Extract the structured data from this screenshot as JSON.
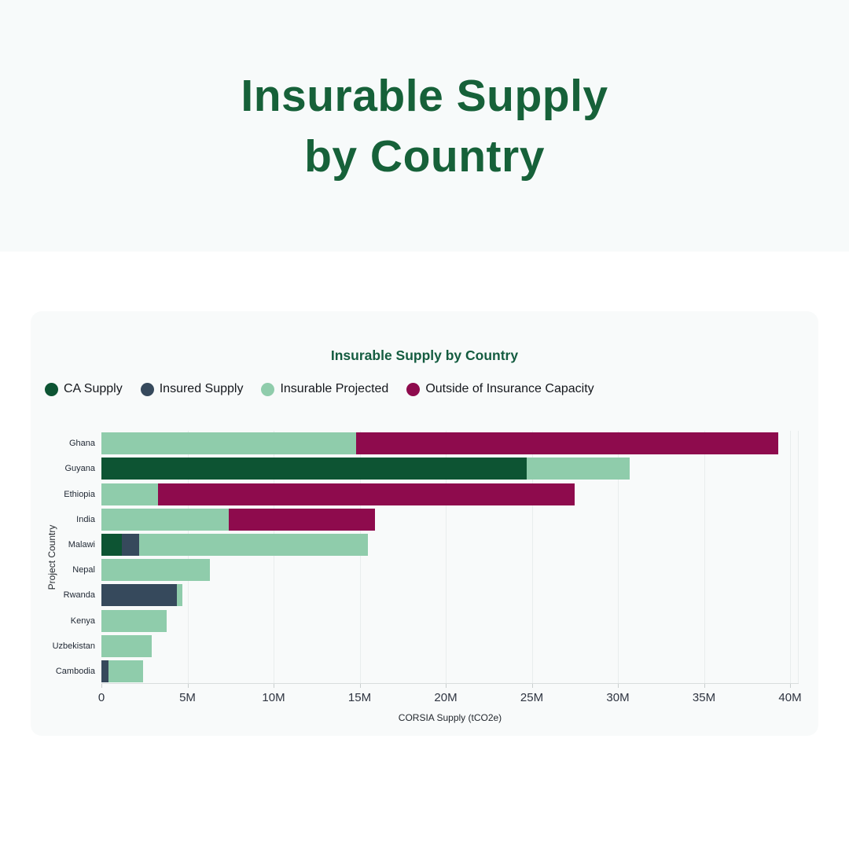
{
  "hero": {
    "title_line1": "Insurable Supply",
    "title_line2": "by Country"
  },
  "colors": {
    "hero_bg": "#f7fafa",
    "card_bg": "#f8fafa",
    "title_green": "#166139",
    "chart_title_green": "#145c40",
    "grid": "#e9eded",
    "axis_line": "#d9dddd"
  },
  "chart_data": {
    "type": "bar",
    "orientation": "horizontal",
    "stacked": true,
    "title": "Insurable Supply by Country",
    "xlabel": "CORSIA Supply (tCO2e)",
    "ylabel": "Project Country",
    "unit": "millions of tCO2e",
    "xlim": [
      0,
      40.5
    ],
    "grid": "vertical",
    "legend_position": "top-left",
    "x_ticks": [
      {
        "value": 0,
        "label": "0"
      },
      {
        "value": 5,
        "label": "5M"
      },
      {
        "value": 10,
        "label": "10M"
      },
      {
        "value": 15,
        "label": "15M"
      },
      {
        "value": 20,
        "label": "20M"
      },
      {
        "value": 25,
        "label": "25M"
      },
      {
        "value": 30,
        "label": "30M"
      },
      {
        "value": 35,
        "label": "35M"
      },
      {
        "value": 40,
        "label": "40M"
      }
    ],
    "categories": [
      "Ghana",
      "Guyana",
      "Ethiopia",
      "India",
      "Malawi",
      "Nepal",
      "Rwanda",
      "Kenya",
      "Uzbekistan",
      "Cambodia"
    ],
    "series": [
      {
        "name": "CA Supply",
        "color": "#0d5433",
        "values": [
          0,
          24.7,
          0,
          0,
          1.2,
          0,
          0,
          0,
          0,
          0
        ]
      },
      {
        "name": "Insured Supply",
        "color": "#36495c",
        "values": [
          0,
          0,
          0,
          0,
          1.0,
          0,
          4.4,
          0,
          0,
          0.4
        ]
      },
      {
        "name": "Insurable Projected",
        "color": "#8fccab",
        "values": [
          14.8,
          6.0,
          3.3,
          7.4,
          13.3,
          6.3,
          0.3,
          3.8,
          2.9,
          2.0
        ]
      },
      {
        "name": "Outside of Insurance Capacity",
        "color": "#8e0b4d",
        "values": [
          24.5,
          0,
          24.2,
          8.5,
          0,
          0,
          0,
          0,
          0,
          0
        ]
      }
    ]
  }
}
